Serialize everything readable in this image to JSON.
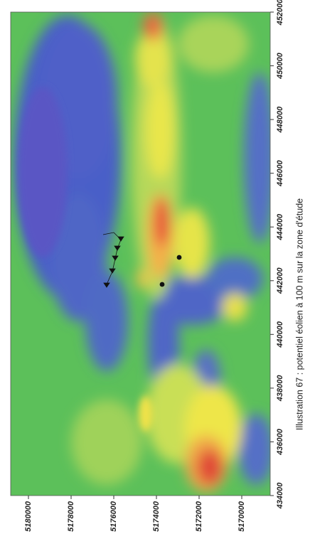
{
  "caption": "Illustration 67 : potentiel éolien à 100 m sur la zone d'étude",
  "map": {
    "x_ticks": [
      "434000",
      "436000",
      "438000",
      "440000",
      "442000",
      "444000",
      "446000",
      "448000",
      "450000",
      "452000"
    ],
    "y_ticks": [
      "5180000",
      "5178000",
      "5176000",
      "5174000",
      "5172000",
      "5170000"
    ]
  }
}
